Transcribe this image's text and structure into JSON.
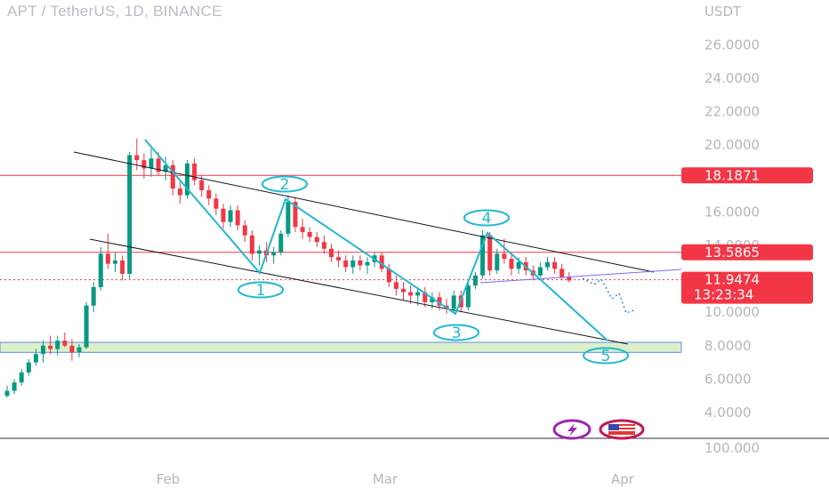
{
  "header": {
    "title": "APT / TetherUS, 1D, BINANCE"
  },
  "chart_data": {
    "type": "candlestick",
    "title": "APT / TetherUS, 1D, BINANCE",
    "currency": "USDT",
    "ylim": [
      3.0,
      27.5
    ],
    "y_ticks": [
      "26.0000",
      "24.0000",
      "22.0000",
      "20.0000",
      "16.0000",
      "14.0000",
      "10.0000",
      "8.0000",
      "6.0000",
      "4.0000"
    ],
    "x_ticks": [
      "Feb",
      "Mar",
      "Apr"
    ],
    "volume_tick": "100.000",
    "price_labels": {
      "resistance": "18.1871",
      "channel_top": "13.5865",
      "last_price": "11.9474",
      "countdown": "13:23:34"
    },
    "horizontal_levels": [
      {
        "value": 18.1871,
        "color": "#f23645"
      },
      {
        "value": 13.5865,
        "color": "#f23645"
      }
    ],
    "support_zone": [
      7.6,
      8.2
    ],
    "wave_labels": [
      "1",
      "2",
      "3",
      "4",
      "5"
    ],
    "colors": {
      "up": "#089981",
      "down": "#f23645",
      "wave": "#22b8cf"
    },
    "candles": [
      [
        5.0,
        5.6,
        4.9,
        5.3
      ],
      [
        5.3,
        6.0,
        5.1,
        5.8
      ],
      [
        5.8,
        6.6,
        5.6,
        6.4
      ],
      [
        6.4,
        7.2,
        6.2,
        7.0
      ],
      [
        7.0,
        7.8,
        6.8,
        7.5
      ],
      [
        7.5,
        8.3,
        7.0,
        8.0
      ],
      [
        8.0,
        8.6,
        7.5,
        7.8
      ],
      [
        7.8,
        8.6,
        7.4,
        8.3
      ],
      [
        8.3,
        8.8,
        7.9,
        8.0
      ],
      [
        8.0,
        8.4,
        7.1,
        7.6
      ],
      [
        7.6,
        8.1,
        7.3,
        7.9
      ],
      [
        7.9,
        10.6,
        7.8,
        10.4
      ],
      [
        10.4,
        11.8,
        10.0,
        11.5
      ],
      [
        11.5,
        13.9,
        11.3,
        13.5
      ],
      [
        13.5,
        14.7,
        12.6,
        12.9
      ],
      [
        12.9,
        13.6,
        12.4,
        13.1
      ],
      [
        13.1,
        13.4,
        11.9,
        12.3
      ],
      [
        12.3,
        19.6,
        12.0,
        19.4
      ],
      [
        19.4,
        20.4,
        18.5,
        19.1
      ],
      [
        19.1,
        19.5,
        18.0,
        18.6
      ],
      [
        18.6,
        19.8,
        18.1,
        19.2
      ],
      [
        19.2,
        19.6,
        18.2,
        18.4
      ],
      [
        18.4,
        19.3,
        17.9,
        18.8
      ],
      [
        18.8,
        19.1,
        17.0,
        17.4
      ],
      [
        17.4,
        17.8,
        16.5,
        17.0
      ],
      [
        17.0,
        19.1,
        16.8,
        18.9
      ],
      [
        18.9,
        19.2,
        17.6,
        17.9
      ],
      [
        17.9,
        18.2,
        16.9,
        17.3
      ],
      [
        17.3,
        17.6,
        16.4,
        16.8
      ],
      [
        16.8,
        17.1,
        15.8,
        16.2
      ],
      [
        16.2,
        16.5,
        15.0,
        15.4
      ],
      [
        15.4,
        16.4,
        15.1,
        16.1
      ],
      [
        16.1,
        16.4,
        14.9,
        15.2
      ],
      [
        15.2,
        15.5,
        14.2,
        14.6
      ],
      [
        14.6,
        14.9,
        13.1,
        13.5
      ],
      [
        13.5,
        14.0,
        12.8,
        13.7
      ],
      [
        13.7,
        14.2,
        13.0,
        13.4
      ],
      [
        13.4,
        13.9,
        12.9,
        13.6
      ],
      [
        13.6,
        14.9,
        13.4,
        14.7
      ],
      [
        14.7,
        17.0,
        14.5,
        16.6
      ],
      [
        16.6,
        16.9,
        14.8,
        15.1
      ],
      [
        15.1,
        15.6,
        14.4,
        14.8
      ],
      [
        14.8,
        15.1,
        14.2,
        14.5
      ],
      [
        14.5,
        14.8,
        13.9,
        14.2
      ],
      [
        14.2,
        14.6,
        13.5,
        13.8
      ],
      [
        13.8,
        14.1,
        13.0,
        13.3
      ],
      [
        13.3,
        13.7,
        12.7,
        13.1
      ],
      [
        13.1,
        13.4,
        12.4,
        12.7
      ],
      [
        12.7,
        13.4,
        12.3,
        13.1
      ],
      [
        13.1,
        13.4,
        12.5,
        12.8
      ],
      [
        12.8,
        13.3,
        12.3,
        13.0
      ],
      [
        13.0,
        13.6,
        12.7,
        13.4
      ],
      [
        13.4,
        13.6,
        12.4,
        12.6
      ],
      [
        12.6,
        12.9,
        11.5,
        11.8
      ],
      [
        11.8,
        12.2,
        11.0,
        11.4
      ],
      [
        11.4,
        11.8,
        10.7,
        11.2
      ],
      [
        11.2,
        11.6,
        10.5,
        11.0
      ],
      [
        11.0,
        11.5,
        10.4,
        11.2
      ],
      [
        11.2,
        11.5,
        10.3,
        10.6
      ],
      [
        10.6,
        11.2,
        10.2,
        10.9
      ],
      [
        10.9,
        11.2,
        10.1,
        10.4
      ],
      [
        10.4,
        10.8,
        9.9,
        10.2
      ],
      [
        10.2,
        11.3,
        10.0,
        11.0
      ],
      [
        11.0,
        11.3,
        10.0,
        10.3
      ],
      [
        10.3,
        11.9,
        10.1,
        11.6
      ],
      [
        11.6,
        12.4,
        11.4,
        12.2
      ],
      [
        12.2,
        14.9,
        12.0,
        14.6
      ],
      [
        14.6,
        14.8,
        12.2,
        12.5
      ],
      [
        12.5,
        13.8,
        12.3,
        13.5
      ],
      [
        13.5,
        14.4,
        12.9,
        13.2
      ],
      [
        13.2,
        13.6,
        12.2,
        12.6
      ],
      [
        12.6,
        13.3,
        12.3,
        13.0
      ],
      [
        13.0,
        13.3,
        12.2,
        12.5
      ],
      [
        12.5,
        12.8,
        11.9,
        12.2
      ],
      [
        12.2,
        13.0,
        12.1,
        12.7
      ],
      [
        12.7,
        13.3,
        12.5,
        13.0
      ],
      [
        13.0,
        13.3,
        12.3,
        12.6
      ],
      [
        12.6,
        12.9,
        11.9,
        12.1
      ],
      [
        12.1,
        12.4,
        11.8,
        11.9
      ]
    ]
  }
}
